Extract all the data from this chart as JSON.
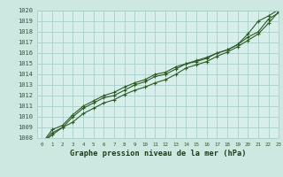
{
  "x": [
    0,
    1,
    2,
    3,
    4,
    5,
    6,
    7,
    8,
    9,
    10,
    11,
    12,
    13,
    14,
    15,
    16,
    17,
    18,
    19,
    20,
    21,
    22,
    23
  ],
  "line1": [
    1007.5,
    1008.5,
    1009.0,
    1010.0,
    1010.8,
    1011.3,
    1011.8,
    1012.0,
    1012.5,
    1013.0,
    1013.3,
    1013.8,
    1014.0,
    1014.5,
    1015.0,
    1015.2,
    1015.5,
    1016.0,
    1016.3,
    1016.8,
    1017.5,
    1018.0,
    1019.2,
    1019.8
  ],
  "line2": [
    1007.5,
    1008.8,
    1009.2,
    1010.2,
    1011.0,
    1011.5,
    1012.0,
    1012.3,
    1012.8,
    1013.2,
    1013.5,
    1014.0,
    1014.2,
    1014.7,
    1015.0,
    1015.3,
    1015.6,
    1016.0,
    1016.3,
    1016.8,
    1017.8,
    1019.0,
    1019.5,
    1020.1
  ],
  "line3": [
    1007.5,
    1008.3,
    1009.0,
    1009.5,
    1010.3,
    1010.8,
    1011.3,
    1011.6,
    1012.1,
    1012.5,
    1012.8,
    1013.2,
    1013.5,
    1014.0,
    1014.6,
    1014.9,
    1015.2,
    1015.7,
    1016.1,
    1016.6,
    1017.2,
    1017.8,
    1018.8,
    1019.9
  ],
  "bg_color": "#cce8e0",
  "plot_bg_color": "#d8eeea",
  "grid_color": "#a8cfc8",
  "line_color": "#2d5a27",
  "xlabel": "Graphe pression niveau de la mer (hPa)",
  "xlabel_color": "#1a3d16",
  "ylim": [
    1008,
    1020
  ],
  "xlim": [
    -0.5,
    23
  ],
  "yticks": [
    1008,
    1009,
    1010,
    1011,
    1012,
    1013,
    1014,
    1015,
    1016,
    1017,
    1018,
    1019,
    1020
  ],
  "xticks": [
    0,
    1,
    2,
    3,
    4,
    5,
    6,
    7,
    8,
    9,
    10,
    11,
    12,
    13,
    14,
    15,
    16,
    17,
    18,
    19,
    20,
    21,
    22,
    23
  ],
  "xtick_labels": [
    "0",
    "1",
    "2",
    "3",
    "4",
    "5",
    "6",
    "7",
    "8",
    "9",
    "10",
    "11",
    "12",
    "13",
    "14",
    "15",
    "16",
    "17",
    "18",
    "19",
    "20",
    "21",
    "22",
    "23"
  ]
}
